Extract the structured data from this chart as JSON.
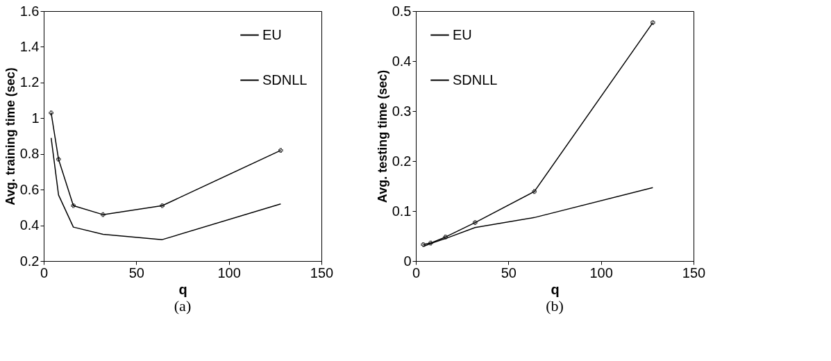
{
  "chart_data": [
    {
      "type": "line",
      "title": "(a)",
      "xlabel": "q",
      "ylabel": "Avg. training time (sec)",
      "x": [
        4,
        8,
        16,
        32,
        64,
        128
      ],
      "xlim": [
        0,
        150
      ],
      "xticks": [
        0,
        50,
        100,
        150
      ],
      "ylim": [
        0.2,
        1.6
      ],
      "yticks": [
        0.2,
        0.4,
        0.6,
        0.8,
        1,
        1.2,
        1.4,
        1.6
      ],
      "grid": false,
      "legend": "top right",
      "series": [
        {
          "name": "EU",
          "color": "#000000",
          "marker": "none",
          "values": [
            0.89,
            0.57,
            0.39,
            0.35,
            0.32,
            0.52
          ]
        },
        {
          "name": "SDNLL",
          "color": "#000000",
          "marker": "cross",
          "values": [
            1.03,
            0.77,
            0.51,
            0.46,
            0.51,
            0.82
          ]
        }
      ]
    },
    {
      "type": "line",
      "title": "(b)",
      "xlabel": "q",
      "ylabel": "Avg. testing time (sec)",
      "x": [
        4,
        8,
        16,
        32,
        64,
        128
      ],
      "xlim": [
        0,
        150
      ],
      "xticks": [
        0,
        50,
        100,
        150
      ],
      "ylim": [
        0,
        0.5
      ],
      "yticks": [
        0,
        0.1,
        0.2,
        0.3,
        0.4,
        0.5
      ],
      "grid": false,
      "legend": "top left",
      "series": [
        {
          "name": "EU",
          "color": "#000000",
          "marker": "none",
          "values": [
            0.029,
            0.035,
            0.045,
            0.067,
            0.087,
            0.147
          ]
        },
        {
          "name": "SDNLL",
          "color": "#000000",
          "marker": "cross",
          "values": [
            0.033,
            0.036,
            0.048,
            0.077,
            0.139,
            0.477
          ]
        }
      ]
    }
  ]
}
